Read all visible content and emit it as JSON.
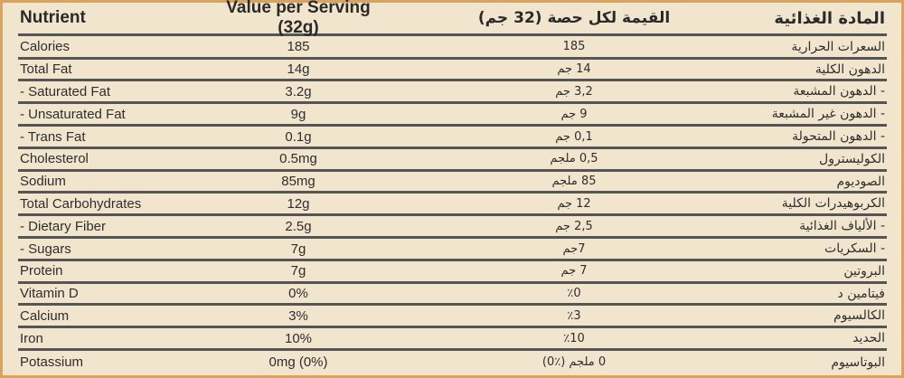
{
  "header": {
    "nutrient": "Nutrient",
    "value": "Value per Serving (32g)",
    "value_ar": "القيمة لكل حصة (32 جم)",
    "nutrient_ar": "المادة الغذائية"
  },
  "rows": [
    {
      "name": "Calories",
      "value": "185",
      "value_ar": "185",
      "name_ar": "السعرات الحرارية"
    },
    {
      "name": "Total Fat",
      "value": "14g",
      "value_ar": "14 جم",
      "name_ar": "الدهون الكلية"
    },
    {
      "name": "- Saturated Fat",
      "value": "3.2g",
      "value_ar": "3,2 جم",
      "name_ar": "- الدهون المشبعة"
    },
    {
      "name": "- Unsaturated Fat",
      "value": "9g",
      "value_ar": "9 جم",
      "name_ar": "- الدهون غير المشبعة"
    },
    {
      "name": "- Trans Fat",
      "value": "0.1g",
      "value_ar": "0,1 جم",
      "name_ar": "- الدهون المتحولة"
    },
    {
      "name": "Cholesterol",
      "value": "0.5mg",
      "value_ar": "0,5 ملجم",
      "name_ar": "الكوليسترول"
    },
    {
      "name": "Sodium",
      "value": "85mg",
      "value_ar": "85 ملجم",
      "name_ar": "الصوديوم"
    },
    {
      "name": "Total Carbohydrates",
      "value": "12g",
      "value_ar": "12 جم",
      "name_ar": "الكربوهيدرات الكلية"
    },
    {
      "name": "- Dietary Fiber",
      "value": "2.5g",
      "value_ar": "2,5 جم",
      "name_ar": "- الألياف الغذائية"
    },
    {
      "name": "- Sugars",
      "value": "7g",
      "value_ar": "7جم",
      "name_ar": "- السكريات"
    },
    {
      "name": "Protein",
      "value": "7g",
      "value_ar": "7 جم",
      "name_ar": "البروتين"
    },
    {
      "name": "Vitamin D",
      "value": "0%",
      "value_ar": "٪0",
      "name_ar": "فيتامين د"
    },
    {
      "name": "Calcium",
      "value": "3%",
      "value_ar": "٪3",
      "name_ar": "الكالسيوم"
    },
    {
      "name": "Iron",
      "value": "10%",
      "value_ar": "٪10",
      "name_ar": "الحديد"
    },
    {
      "name": "Potassium",
      "value": "0mg (0%)",
      "value_ar": "0 ملجم (٪0)",
      "name_ar": "البوتاسيوم"
    }
  ],
  "colors": {
    "background": "#f2e5ce",
    "border": "#d9a35e",
    "rule": "#555555"
  }
}
